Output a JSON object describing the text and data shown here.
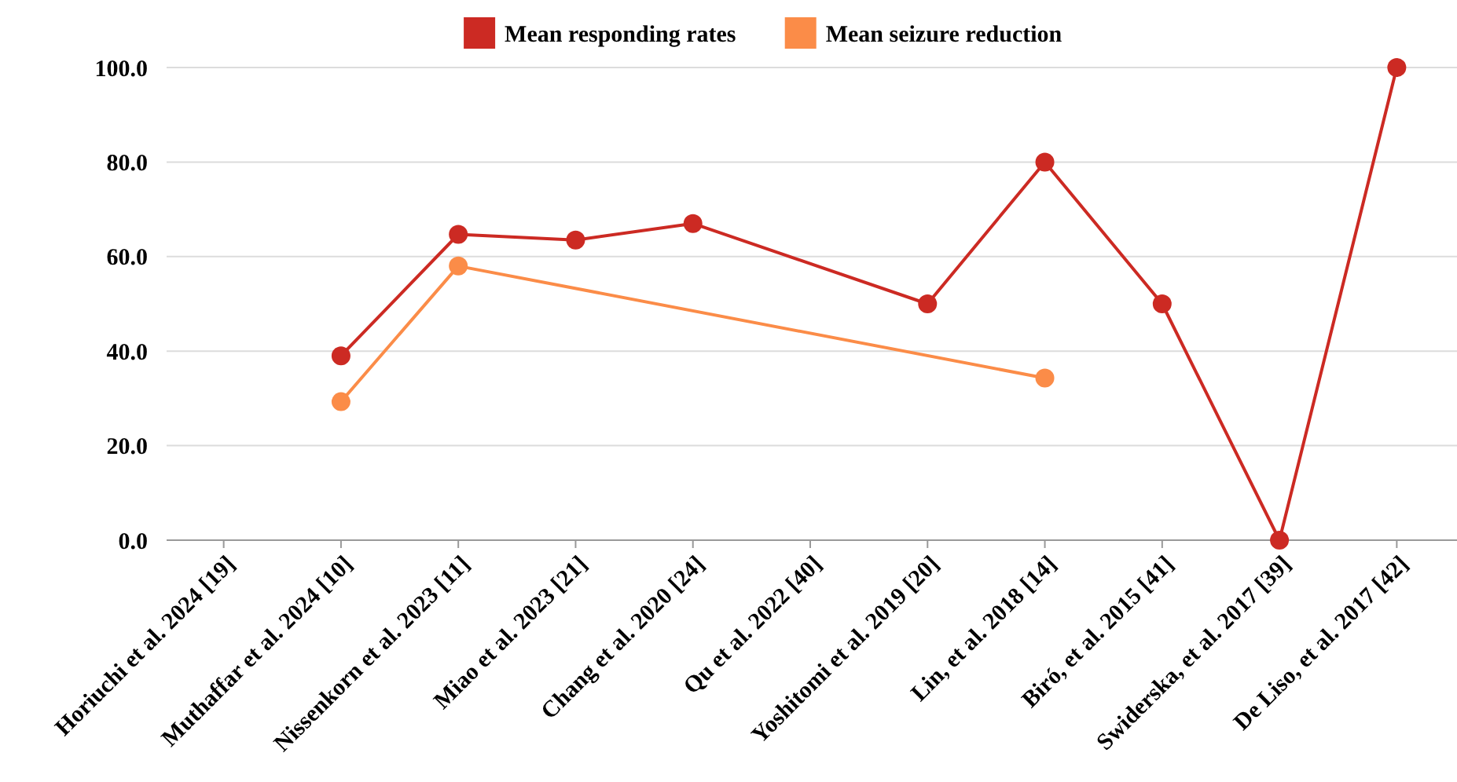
{
  "chart_data": {
    "type": "line",
    "categories": [
      "Horiuchi et al. 2024 [19]",
      "Muthaffar et al. 2024 [10]",
      "Nissenkorn et al. 2023 [11]",
      "Miao et al. 2023 [21]",
      "Chang et al. 2020 [24]",
      "Qu et al. 2022 [40]",
      "Yoshitomi et al. 2019 [20]",
      "Lin, et al. 2018 [14]",
      "Biró, et al. 2015 [41]",
      "Swiderska, et al. 2017 [39]",
      "De Liso, et al. 2017 [42]"
    ],
    "series": [
      {
        "name": "Mean responding rates",
        "color": "#cc2a23",
        "values": [
          null,
          39,
          64.7,
          63.5,
          67,
          null,
          50,
          80,
          50,
          0,
          100
        ]
      },
      {
        "name": "Mean seizure reduction",
        "color": "#fb8c48",
        "values": [
          null,
          29.3,
          58,
          null,
          null,
          null,
          null,
          34.3,
          null,
          null,
          null
        ]
      }
    ],
    "ylim": [
      0,
      100
    ],
    "yticks": [
      {
        "value": 0,
        "label": "0.0"
      },
      {
        "value": 20,
        "label": "20.0"
      },
      {
        "value": 40,
        "label": "40.0"
      },
      {
        "value": 60,
        "label": "60.0"
      },
      {
        "value": 80,
        "label": "80.0"
      },
      {
        "value": 100,
        "label": "100.0"
      }
    ],
    "grid": "y",
    "legend": "top",
    "marker": "circle",
    "line_style": "solid"
  }
}
